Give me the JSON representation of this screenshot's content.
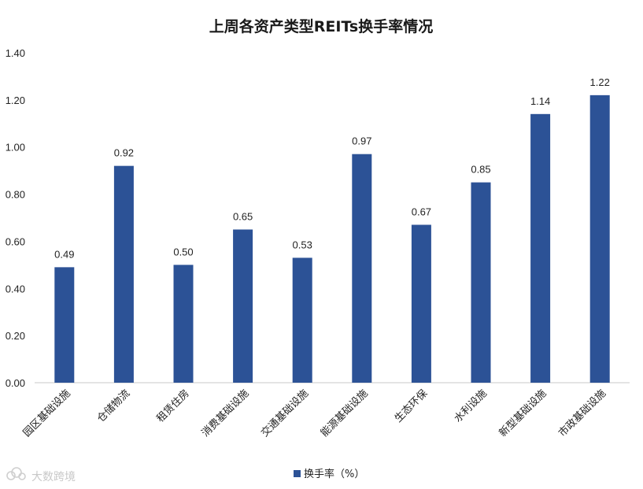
{
  "chart_data": {
    "type": "bar",
    "title": "上周各资产类型REITs换手率情况",
    "categories": [
      "园区基础设施",
      "仓储物流",
      "租赁住房",
      "消费基础设施",
      "交通基础设施",
      "能源基础设施",
      "生态环保",
      "水利设施",
      "新型基础设施",
      "市政基础设施"
    ],
    "series": [
      {
        "name": "换手率（%）",
        "values": [
          0.49,
          0.92,
          0.5,
          0.65,
          0.53,
          0.97,
          0.67,
          0.85,
          1.14,
          1.22
        ]
      }
    ],
    "data_labels": [
      "0.49",
      "0.92",
      "0.50",
      "0.65",
      "0.53",
      "0.97",
      "0.67",
      "0.85",
      "1.14",
      "1.22"
    ],
    "yticks": [
      "0.00",
      "0.20",
      "0.40",
      "0.60",
      "0.80",
      "1.00",
      "1.20",
      "1.40"
    ],
    "ylim": [
      0,
      1.4
    ],
    "grid": false,
    "legend_position": "bottom",
    "bar_color": "#2c5296"
  },
  "watermark": {
    "text": "大数跨境",
    "icon": "cloud-logo-icon"
  }
}
